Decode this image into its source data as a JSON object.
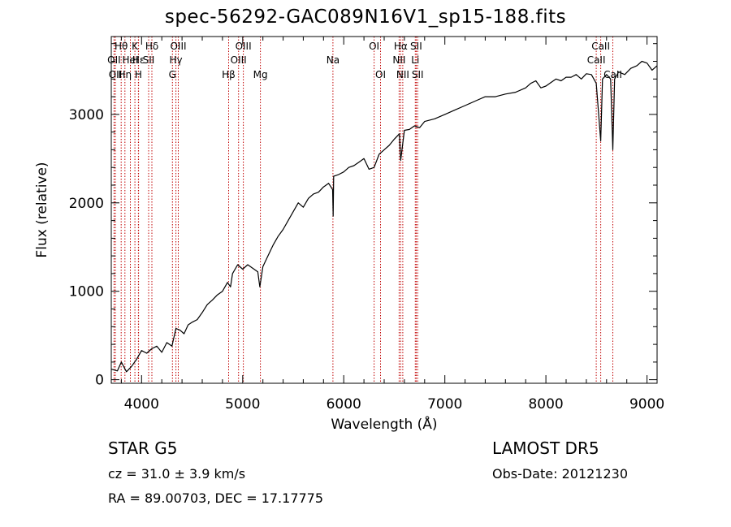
{
  "title": "spec-56292-GAC089N16V1_sp15-188.fits",
  "footer": {
    "class_label": "STAR     G5",
    "survey": "LAMOST  DR5",
    "cz": "cz = 31.0 ± 3.9 km/s",
    "obs_date": "Obs-Date: 20121230",
    "radec": "RA =  89.00703, DEC =  17.17775"
  },
  "colors": {
    "spectrum": "#000000",
    "line_marker": "#c00000",
    "axis": "#000000"
  },
  "chart_data": {
    "type": "line",
    "title": "spec-56292-GAC089N16V1_sp15-188.fits",
    "xlabel": "Wavelength (Å)",
    "ylabel": "Flux (relative)",
    "xlim": [
      3700,
      9100
    ],
    "ylim": [
      -40,
      3880
    ],
    "xticks": [
      4000,
      5000,
      6000,
      7000,
      8000,
      9000
    ],
    "yticks": [
      0,
      1000,
      2000,
      3000
    ],
    "grid": false,
    "series": [
      {
        "x": [
          3700,
          3760,
          3800,
          3850,
          3900,
          3950,
          4000,
          4050,
          4100,
          4150,
          4200,
          4250,
          4300,
          4340,
          4380,
          4420,
          4460,
          4500,
          4550,
          4600,
          4650,
          4700,
          4750,
          4800,
          4850,
          4880,
          4900,
          4950,
          5000,
          5050,
          5100,
          5150,
          5170,
          5200,
          5250,
          5300,
          5350,
          5400,
          5450,
          5500,
          5550,
          5600,
          5650,
          5700,
          5750,
          5800,
          5850,
          5890,
          5895,
          5900,
          5950,
          6000,
          6050,
          6100,
          6150,
          6200,
          6250,
          6300,
          6350,
          6400,
          6450,
          6500,
          6550,
          6563,
          6600,
          6650,
          6700,
          6750,
          6800,
          6900,
          7000,
          7100,
          7200,
          7300,
          7400,
          7500,
          7600,
          7700,
          7800,
          7850,
          7900,
          7950,
          8000,
          8050,
          8100,
          8150,
          8200,
          8250,
          8300,
          8350,
          8400,
          8450,
          8498,
          8542,
          8560,
          8600,
          8640,
          8662,
          8680,
          8720,
          8780,
          8840,
          8900,
          8950,
          9000,
          9050,
          9100
        ],
        "y": [
          120,
          100,
          200,
          90,
          150,
          230,
          330,
          300,
          350,
          380,
          310,
          420,
          380,
          580,
          560,
          520,
          620,
          650,
          680,
          760,
          850,
          900,
          960,
          1000,
          1100,
          1050,
          1200,
          1300,
          1250,
          1300,
          1260,
          1220,
          1050,
          1280,
          1400,
          1520,
          1620,
          1700,
          1800,
          1900,
          2000,
          1950,
          2050,
          2100,
          2120,
          2180,
          2220,
          2150,
          1850,
          2300,
          2320,
          2350,
          2400,
          2420,
          2460,
          2500,
          2380,
          2400,
          2550,
          2600,
          2650,
          2720,
          2780,
          2480,
          2820,
          2830,
          2870,
          2850,
          2920,
          2950,
          3000,
          3050,
          3100,
          3150,
          3200,
          3200,
          3230,
          3250,
          3300,
          3350,
          3380,
          3300,
          3320,
          3360,
          3400,
          3380,
          3420,
          3420,
          3450,
          3400,
          3460,
          3450,
          3350,
          2700,
          3400,
          3450,
          3400,
          2600,
          3400,
          3480,
          3450,
          3520,
          3550,
          3600,
          3580,
          3500,
          3550
        ]
      }
    ],
    "line_markers": [
      {
        "label": "Hθ",
        "x": 3798
      },
      {
        "label": "K",
        "x": 3934
      },
      {
        "label": "Hδ",
        "x": 4102
      },
      {
        "label": "OIII",
        "x": 4363
      },
      {
        "label": "OIII",
        "x": 5007
      },
      {
        "label": "OI",
        "x": 6300
      },
      {
        "label": "Hα",
        "x": 6563
      },
      {
        "label": "SII",
        "x": 6717
      },
      {
        "label": "CaII",
        "x": 8542
      },
      {
        "label": "OII",
        "x": 3727
      },
      {
        "label": "Hε",
        "x": 3970
      },
      {
        "label": "HeI",
        "x": 3889
      },
      {
        "label": "SII",
        "x": 4070
      },
      {
        "label": "Hγ",
        "x": 4340
      },
      {
        "label": "OIII",
        "x": 4959
      },
      {
        "label": "Na",
        "x": 5893
      },
      {
        "label": "NII",
        "x": 6548
      },
      {
        "label": "Li",
        "x": 6708
      },
      {
        "label": "CaII",
        "x": 8498
      },
      {
        "label": "OII",
        "x": 3740
      },
      {
        "label": "Hη",
        "x": 3835
      },
      {
        "label": "H",
        "x": 3968
      },
      {
        "label": "G",
        "x": 4305
      },
      {
        "label": "Hβ",
        "x": 4861
      },
      {
        "label": "Mg",
        "x": 5175
      },
      {
        "label": "OI",
        "x": 6364
      },
      {
        "label": "NII",
        "x": 6584
      },
      {
        "label": "SII",
        "x": 6731
      },
      {
        "label": "CaII",
        "x": 8662
      }
    ]
  }
}
